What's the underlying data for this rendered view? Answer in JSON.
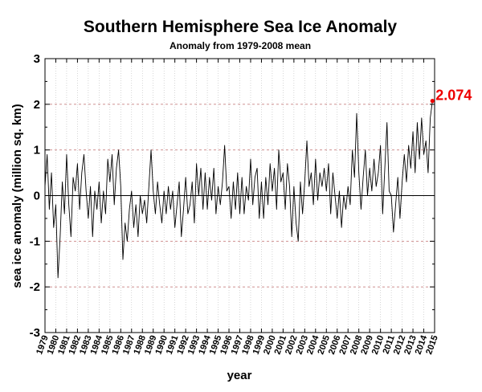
{
  "chart_data": {
    "type": "line",
    "title": "Southern Hemisphere Sea Ice Anomaly",
    "subtitle": "Anomaly from 1979-2008 mean",
    "xlabel": "year",
    "ylabel": "sea ice anomaly (million sq. km)",
    "xlim": [
      1979,
      2015
    ],
    "ylim": [
      -3,
      3
    ],
    "y_ticks": [
      "3",
      "2",
      "1",
      "0",
      "-1",
      "-2",
      "-3"
    ],
    "x_ticks": [
      "1979",
      "1980",
      "1981",
      "1982",
      "1983",
      "1984",
      "1985",
      "1986",
      "1987",
      "1988",
      "1989",
      "1990",
      "1991",
      "1992",
      "1993",
      "1994",
      "1995",
      "1996",
      "1997",
      "1998",
      "1999",
      "2000",
      "2001",
      "2002",
      "2003",
      "2004",
      "2005",
      "2006",
      "2007",
      "2008",
      "2009",
      "2010",
      "2011",
      "2012",
      "2013",
      "2014",
      "2015"
    ],
    "grid": true,
    "reference_lines": [
      2,
      1,
      -1,
      -2
    ],
    "zero_line": 0,
    "series": [
      {
        "color": "#000000",
        "points": [
          [
            1979.0,
            0.2
          ],
          [
            1979.2,
            0.9
          ],
          [
            1979.4,
            -0.3
          ],
          [
            1979.6,
            0.5
          ],
          [
            1979.8,
            -0.7
          ],
          [
            1980.0,
            -0.2
          ],
          [
            1980.2,
            -1.8
          ],
          [
            1980.4,
            -0.9
          ],
          [
            1980.6,
            0.3
          ],
          [
            1980.8,
            -0.4
          ],
          [
            1981.0,
            0.9
          ],
          [
            1981.2,
            -0.2
          ],
          [
            1981.4,
            -0.9
          ],
          [
            1981.6,
            0.4
          ],
          [
            1981.8,
            0.1
          ],
          [
            1982.0,
            0.7
          ],
          [
            1982.2,
            -0.3
          ],
          [
            1982.4,
            0.5
          ],
          [
            1982.6,
            0.9
          ],
          [
            1982.8,
            0.1
          ],
          [
            1983.0,
            -0.5
          ],
          [
            1983.2,
            0.2
          ],
          [
            1983.4,
            -0.9
          ],
          [
            1983.6,
            0.1
          ],
          [
            1983.8,
            -0.3
          ],
          [
            1984.0,
            0.3
          ],
          [
            1984.2,
            -0.6
          ],
          [
            1984.4,
            0.1
          ],
          [
            1984.6,
            -0.4
          ],
          [
            1984.8,
            0.8
          ],
          [
            1985.0,
            0.3
          ],
          [
            1985.2,
            0.9
          ],
          [
            1985.4,
            -0.2
          ],
          [
            1985.6,
            0.6
          ],
          [
            1985.8,
            1.0
          ],
          [
            1986.0,
            0.2
          ],
          [
            1986.2,
            -1.4
          ],
          [
            1986.4,
            -0.6
          ],
          [
            1986.6,
            -1.0
          ],
          [
            1986.8,
            -0.3
          ],
          [
            1987.0,
            0.1
          ],
          [
            1987.2,
            -0.7
          ],
          [
            1987.4,
            -0.2
          ],
          [
            1987.6,
            -0.9
          ],
          [
            1987.8,
            0.0
          ],
          [
            1988.0,
            -0.4
          ],
          [
            1988.2,
            -0.1
          ],
          [
            1988.4,
            -0.6
          ],
          [
            1988.6,
            0.2
          ],
          [
            1988.8,
            1.0
          ],
          [
            1989.0,
            0.1
          ],
          [
            1989.2,
            -0.4
          ],
          [
            1989.4,
            0.3
          ],
          [
            1989.6,
            -0.2
          ],
          [
            1989.8,
            -0.6
          ],
          [
            1990.0,
            0.1
          ],
          [
            1990.2,
            -0.4
          ],
          [
            1990.4,
            0.2
          ],
          [
            1990.6,
            -0.3
          ],
          [
            1990.8,
            0.1
          ],
          [
            1991.0,
            -0.7
          ],
          [
            1991.2,
            -0.2
          ],
          [
            1991.4,
            0.3
          ],
          [
            1991.6,
            -0.9
          ],
          [
            1991.8,
            -0.3
          ],
          [
            1992.0,
            0.4
          ],
          [
            1992.2,
            -0.4
          ],
          [
            1992.4,
            -0.2
          ],
          [
            1992.6,
            0.3
          ],
          [
            1992.8,
            -0.6
          ],
          [
            1993.0,
            0.7
          ],
          [
            1993.2,
            0.0
          ],
          [
            1993.4,
            0.6
          ],
          [
            1993.6,
            -0.3
          ],
          [
            1993.8,
            0.5
          ],
          [
            1994.0,
            -0.3
          ],
          [
            1994.2,
            0.4
          ],
          [
            1994.4,
            -0.1
          ],
          [
            1994.6,
            0.6
          ],
          [
            1994.8,
            -0.4
          ],
          [
            1995.0,
            0.2
          ],
          [
            1995.2,
            -0.2
          ],
          [
            1995.4,
            0.3
          ],
          [
            1995.6,
            1.1
          ],
          [
            1995.8,
            0.1
          ],
          [
            1996.0,
            0.2
          ],
          [
            1996.2,
            -0.5
          ],
          [
            1996.4,
            0.3
          ],
          [
            1996.6,
            -0.3
          ],
          [
            1996.8,
            0.5
          ],
          [
            1997.0,
            -0.4
          ],
          [
            1997.2,
            0.4
          ],
          [
            1997.4,
            -0.4
          ],
          [
            1997.6,
            0.2
          ],
          [
            1997.8,
            -0.1
          ],
          [
            1998.0,
            0.8
          ],
          [
            1998.2,
            -0.2
          ],
          [
            1998.4,
            0.4
          ],
          [
            1998.6,
            0.6
          ],
          [
            1998.8,
            -0.5
          ],
          [
            1999.0,
            0.3
          ],
          [
            1999.2,
            -0.5
          ],
          [
            1999.4,
            0.4
          ],
          [
            1999.6,
            -0.2
          ],
          [
            1999.8,
            0.7
          ],
          [
            2000.0,
            0.1
          ],
          [
            2000.2,
            0.6
          ],
          [
            2000.4,
            -0.3
          ],
          [
            2000.6,
            1.0
          ],
          [
            2000.8,
            0.3
          ],
          [
            2001.0,
            0.5
          ],
          [
            2001.2,
            -0.3
          ],
          [
            2001.4,
            0.7
          ],
          [
            2001.6,
            0.2
          ],
          [
            2001.8,
            -0.9
          ],
          [
            2002.0,
            0.2
          ],
          [
            2002.2,
            -0.6
          ],
          [
            2002.4,
            -1.0
          ],
          [
            2002.6,
            0.3
          ],
          [
            2002.8,
            -0.4
          ],
          [
            2003.0,
            0.3
          ],
          [
            2003.2,
            1.2
          ],
          [
            2003.4,
            0.2
          ],
          [
            2003.6,
            0.5
          ],
          [
            2003.8,
            -0.2
          ],
          [
            2004.0,
            0.8
          ],
          [
            2004.2,
            -0.1
          ],
          [
            2004.4,
            0.5
          ],
          [
            2004.6,
            0.2
          ],
          [
            2004.8,
            0.6
          ],
          [
            2005.0,
            0.1
          ],
          [
            2005.2,
            0.7
          ],
          [
            2005.4,
            -0.4
          ],
          [
            2005.6,
            0.5
          ],
          [
            2005.8,
            0.0
          ],
          [
            2006.0,
            -0.5
          ],
          [
            2006.2,
            0.1
          ],
          [
            2006.4,
            -0.7
          ],
          [
            2006.6,
            0.0
          ],
          [
            2006.8,
            -0.3
          ],
          [
            2007.0,
            0.2
          ],
          [
            2007.2,
            -0.2
          ],
          [
            2007.4,
            1.0
          ],
          [
            2007.6,
            0.4
          ],
          [
            2007.8,
            1.8
          ],
          [
            2008.0,
            0.5
          ],
          [
            2008.2,
            -0.3
          ],
          [
            2008.4,
            0.4
          ],
          [
            2008.6,
            1.0
          ],
          [
            2008.8,
            0.0
          ],
          [
            2009.0,
            0.6
          ],
          [
            2009.2,
            0.1
          ],
          [
            2009.4,
            0.8
          ],
          [
            2009.6,
            0.2
          ],
          [
            2009.8,
            0.5
          ],
          [
            2010.0,
            1.1
          ],
          [
            2010.2,
            -0.4
          ],
          [
            2010.4,
            0.6
          ],
          [
            2010.6,
            1.6
          ],
          [
            2010.8,
            0.1
          ],
          [
            2011.0,
            0.0
          ],
          [
            2011.2,
            -0.8
          ],
          [
            2011.4,
            -0.2
          ],
          [
            2011.6,
            0.4
          ],
          [
            2011.8,
            -0.5
          ],
          [
            2012.0,
            0.3
          ],
          [
            2012.2,
            0.9
          ],
          [
            2012.4,
            0.3
          ],
          [
            2012.6,
            1.1
          ],
          [
            2012.8,
            0.6
          ],
          [
            2013.0,
            1.4
          ],
          [
            2013.2,
            0.5
          ],
          [
            2013.4,
            1.6
          ],
          [
            2013.6,
            0.8
          ],
          [
            2013.8,
            1.7
          ],
          [
            2014.0,
            0.9
          ],
          [
            2014.2,
            1.2
          ],
          [
            2014.4,
            0.5
          ],
          [
            2014.6,
            1.7
          ],
          [
            2014.8,
            2.074
          ]
        ]
      }
    ],
    "highlight": {
      "x": 2014.8,
      "y": 2.074,
      "label": "2.074",
      "color": "#ee0000"
    }
  }
}
